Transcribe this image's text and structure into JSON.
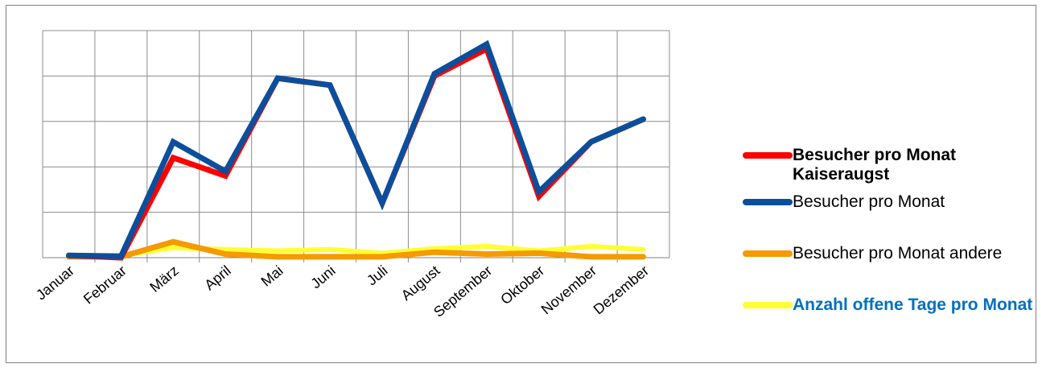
{
  "chart_data": {
    "type": "line",
    "title": "",
    "xlabel": "",
    "ylabel": "",
    "categories": [
      "Januar",
      "Februar",
      "März",
      "April",
      "Mai",
      "Juni",
      "Juli",
      "August",
      "September",
      "Oktober",
      "November",
      "Dezember"
    ],
    "ylim": [
      0,
      5
    ],
    "y_ticks_shown": false,
    "grid": true,
    "legend_position": "right",
    "series": [
      {
        "name": "Besucher pro Monat Kaiseraugst",
        "color": "#ff0000",
        "label_style": "bold",
        "values": [
          0.05,
          0.0,
          2.2,
          1.8,
          3.95,
          3.8,
          1.2,
          4.0,
          4.6,
          1.35,
          2.55,
          3.05
        ]
      },
      {
        "name": "Besucher pro Monat",
        "color": "#0b4f9c",
        "label_style": "normal",
        "values": [
          0.05,
          0.03,
          2.55,
          1.9,
          3.95,
          3.8,
          1.2,
          4.05,
          4.7,
          1.45,
          2.55,
          3.05
        ]
      },
      {
        "name": "Besucher pro Monat andere",
        "color": "#f59a00",
        "label_style": "normal",
        "values": [
          0.02,
          0.02,
          0.35,
          0.08,
          0.02,
          0.02,
          0.02,
          0.12,
          0.08,
          0.1,
          0.02,
          0.02
        ]
      },
      {
        "name": "Anzahl offene Tage pro Monat",
        "color": "#ffff33",
        "label_style": "bold-blue",
        "values": [
          0.05,
          0.05,
          0.22,
          0.18,
          0.15,
          0.18,
          0.1,
          0.2,
          0.25,
          0.15,
          0.25,
          0.18
        ]
      }
    ]
  }
}
